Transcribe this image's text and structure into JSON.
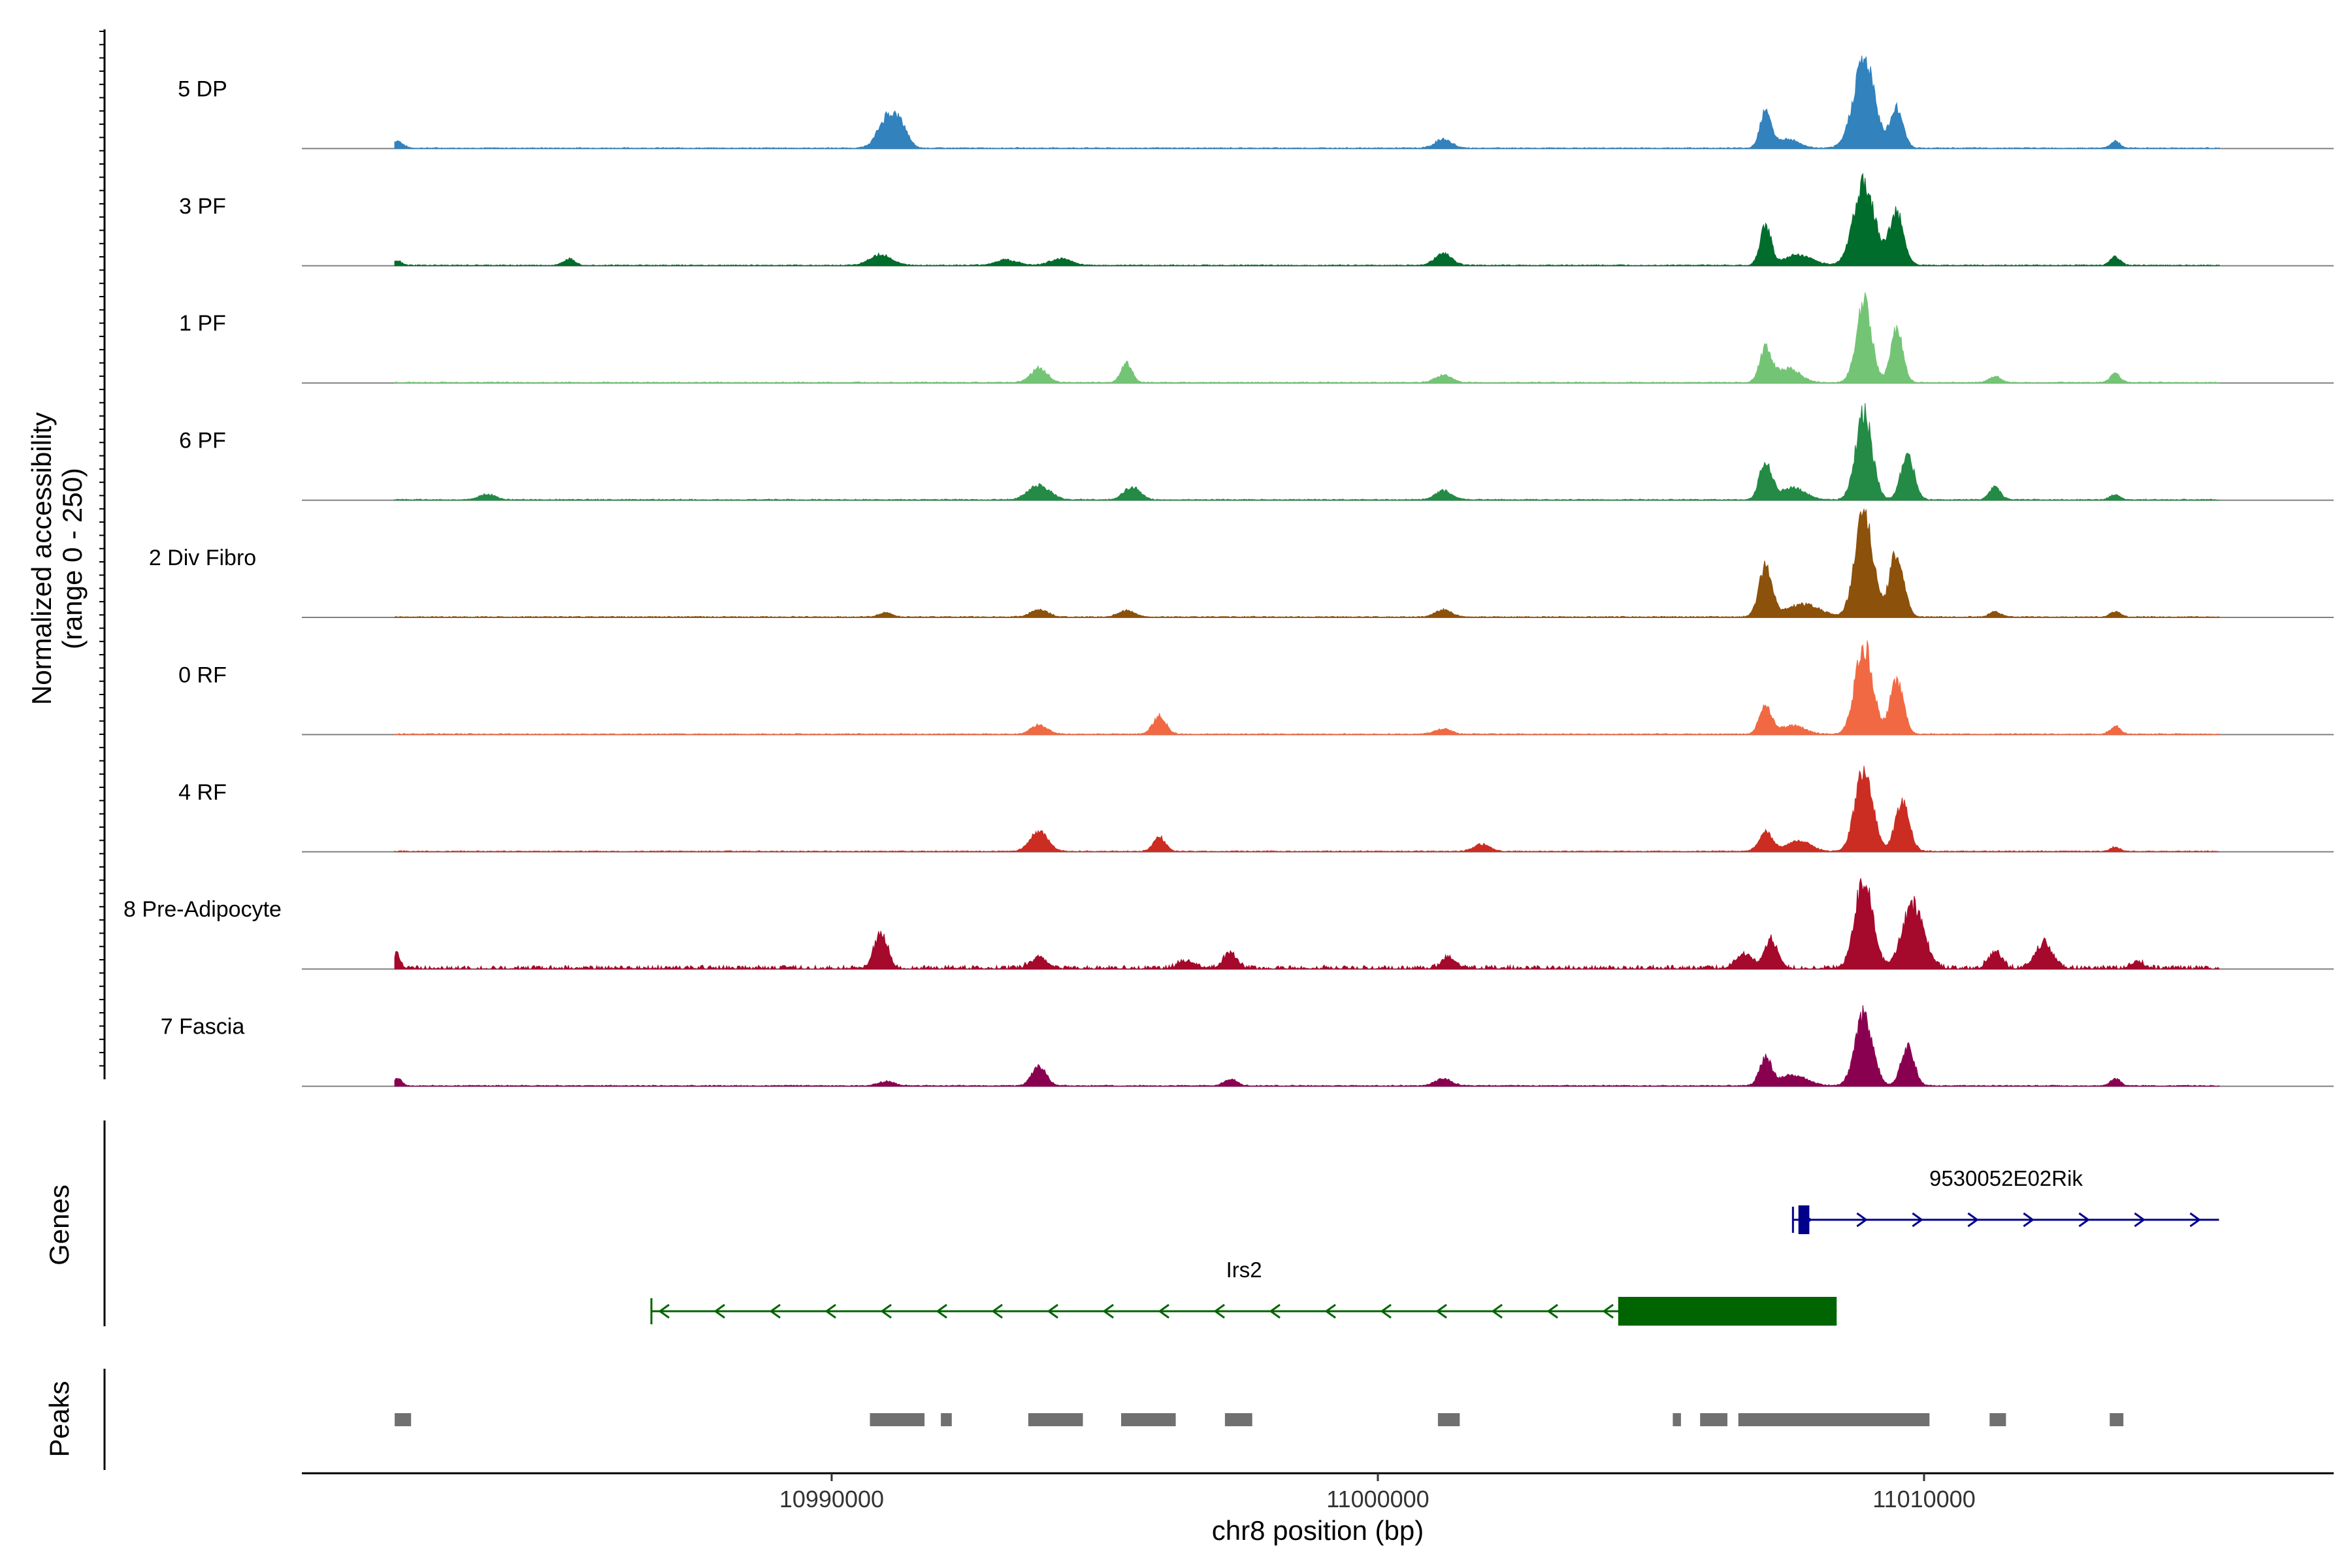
{
  "chart_data": {
    "type": "coverage",
    "xlabel": "chr8 position (bp)",
    "xlim": [
      10980300,
      11017500
    ],
    "x_ticks": [
      {
        "value": 10990000,
        "label": "10990000"
      },
      {
        "value": 11000000,
        "label": "11000000"
      },
      {
        "value": 11010000,
        "label": "11010000"
      }
    ],
    "coverage_panel": {
      "ylabel": "Normalized accessibility",
      "ylabel_range": "(range 0 - 250)",
      "ylim": [
        0,
        250
      ]
    },
    "tracks_panel_label": "Genes",
    "peaks_panel_label": "Peaks",
    "series": [
      {
        "name": "5 DP",
        "color": "#3182bd",
        "peaks": [
          [
            10982050,
            20,
            100
          ],
          [
            10991050,
            95,
            180
          ],
          [
            10991300,
            35,
            120
          ],
          [
            11001200,
            25,
            150
          ],
          [
            11007100,
            110,
            100
          ],
          [
            11008900,
            250,
            190
          ],
          [
            11009500,
            110,
            120
          ],
          [
            11007500,
            25,
            200
          ],
          [
            11013500,
            18,
            90
          ]
        ]
      },
      {
        "name": "3 PF",
        "color": "#006d2c",
        "peaks": [
          [
            10982050,
            12,
            80
          ],
          [
            10985200,
            20,
            100
          ],
          [
            10990900,
            30,
            200
          ],
          [
            10993200,
            15,
            200
          ],
          [
            10994200,
            18,
            200
          ],
          [
            11001200,
            35,
            150
          ],
          [
            11007100,
            110,
            100
          ],
          [
            11008900,
            235,
            190
          ],
          [
            11009500,
            150,
            130
          ],
          [
            11007700,
            30,
            250
          ],
          [
            11013500,
            25,
            90
          ]
        ]
      },
      {
        "name": "1 PF",
        "color": "#74c476",
        "peaks": [
          [
            10993800,
            40,
            150
          ],
          [
            10995400,
            55,
            100
          ],
          [
            11001200,
            22,
            150
          ],
          [
            11007100,
            90,
            110
          ],
          [
            11008900,
            225,
            140
          ],
          [
            11009500,
            150,
            110
          ],
          [
            11007500,
            40,
            220
          ],
          [
            11011300,
            18,
            100
          ],
          [
            11013500,
            25,
            90
          ]
        ]
      },
      {
        "name": "6 PF",
        "color": "#238b45",
        "peaks": [
          [
            10983700,
            15,
            150
          ],
          [
            10993800,
            40,
            200
          ],
          [
            10995500,
            35,
            150
          ],
          [
            11001200,
            25,
            150
          ],
          [
            11007100,
            110,
            110
          ],
          [
            11008900,
            240,
            150
          ],
          [
            11009700,
            130,
            120
          ],
          [
            11007600,
            35,
            220
          ],
          [
            11011300,
            35,
            100
          ],
          [
            11013500,
            15,
            90
          ]
        ]
      },
      {
        "name": "2 Div Fibro",
        "color": "#8c510a",
        "peaks": [
          [
            10991000,
            12,
            120
          ],
          [
            10993800,
            22,
            150
          ],
          [
            10995400,
            18,
            150
          ],
          [
            11001200,
            20,
            150
          ],
          [
            11007100,
            140,
            120
          ],
          [
            11008900,
            300,
            160
          ],
          [
            11009500,
            180,
            130
          ],
          [
            11007800,
            35,
            300
          ],
          [
            11011300,
            15,
            100
          ],
          [
            11013500,
            15,
            90
          ]
        ]
      },
      {
        "name": "0 RF",
        "color": "#f16942",
        "peaks": [
          [
            10993800,
            25,
            150
          ],
          [
            10996000,
            50,
            120
          ],
          [
            11001200,
            15,
            150
          ],
          [
            11007100,
            80,
            110
          ],
          [
            11008900,
            250,
            160
          ],
          [
            11009500,
            155,
            120
          ],
          [
            11007600,
            25,
            220
          ],
          [
            11013500,
            22,
            90
          ]
        ]
      },
      {
        "name": "4 RF",
        "color": "#cb2d22",
        "peaks": [
          [
            10993800,
            55,
            160
          ],
          [
            10996000,
            40,
            110
          ],
          [
            11001900,
            20,
            150
          ],
          [
            11007100,
            55,
            120
          ],
          [
            11008900,
            230,
            160
          ],
          [
            11009600,
            135,
            130
          ],
          [
            11007700,
            30,
            220
          ],
          [
            11013500,
            12,
            90
          ]
        ]
      },
      {
        "name": "8 Pre-Adipocyte",
        "color": "#a5092b",
        "peaks": [
          [
            10982050,
            40,
            60
          ],
          [
            10990900,
            100,
            120
          ],
          [
            10993800,
            30,
            150
          ],
          [
            10996500,
            22,
            150
          ],
          [
            10997300,
            45,
            120
          ],
          [
            11001300,
            30,
            130
          ],
          [
            11006700,
            40,
            150
          ],
          [
            11007200,
            80,
            120
          ],
          [
            11008900,
            250,
            160
          ],
          [
            11009800,
            175,
            200
          ],
          [
            11011300,
            45,
            120
          ],
          [
            11012200,
            70,
            160
          ],
          [
            11013900,
            18,
            120
          ]
        ],
        "noisy": true
      },
      {
        "name": "7 Fascia",
        "color": "#8a0050",
        "peaks": [
          [
            10982050,
            20,
            80
          ],
          [
            10991000,
            12,
            150
          ],
          [
            10993800,
            55,
            130
          ],
          [
            10997300,
            18,
            120
          ],
          [
            11001200,
            20,
            150
          ],
          [
            11007100,
            75,
            110
          ],
          [
            11008900,
            200,
            160
          ],
          [
            11009700,
            110,
            120
          ],
          [
            11007600,
            30,
            250
          ],
          [
            11013500,
            20,
            90
          ]
        ]
      }
    ],
    "genes": [
      {
        "name": "Irs2",
        "color": "#006400",
        "strand": "-",
        "start": 10986700,
        "end": 11008400,
        "thick": [
          11004400,
          11008400
        ],
        "row": 2
      },
      {
        "name": "9530052E02Rik",
        "color": "#00008b",
        "strand": "+",
        "start": 11007600,
        "end": 11015400,
        "thick": [
          11007700,
          11007900
        ],
        "row": 1
      }
    ],
    "peak_regions": [
      [
        10982000,
        10982300
      ],
      [
        10990700,
        10991700
      ],
      [
        10992000,
        10992200
      ],
      [
        10993600,
        10994600
      ],
      [
        10995300,
        10996300
      ],
      [
        10997200,
        10997700
      ],
      [
        11001100,
        11001500
      ],
      [
        11005400,
        11005550
      ],
      [
        11005900,
        11006400
      ],
      [
        11006600,
        11010100
      ],
      [
        11011200,
        11011500
      ],
      [
        11013400,
        11013650
      ]
    ]
  }
}
